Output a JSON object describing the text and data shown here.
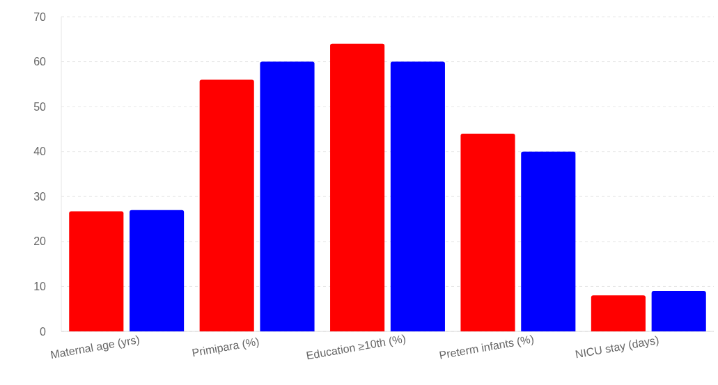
{
  "chart_data": {
    "type": "bar",
    "categories": [
      "Maternal age (yrs)",
      "Primipara (%)",
      "Education ≥10th (%)",
      "Preterm infants (%)",
      "NICU stay (days)"
    ],
    "series": [
      {
        "color": "#ff0000",
        "values": [
          26.7,
          56,
          64,
          44,
          8
        ]
      },
      {
        "color": "#0000ff",
        "values": [
          27,
          60,
          60,
          40,
          9
        ]
      }
    ],
    "ylim": [
      0,
      70
    ],
    "yticks": [
      0,
      10,
      20,
      30,
      40,
      50,
      60,
      70
    ],
    "grid": "y"
  }
}
